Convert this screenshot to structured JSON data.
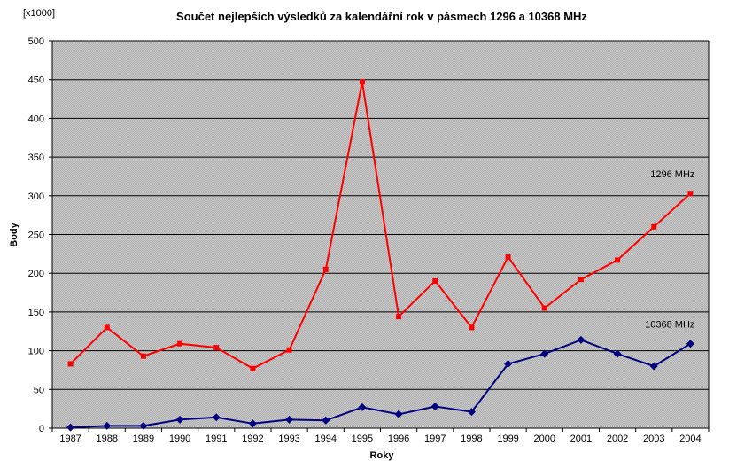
{
  "chart_data": {
    "type": "line",
    "title": "Součet nejlepších výsledků za kalendářní rok v pásmech 1296 a 10368 MHz",
    "xlabel": "Roky",
    "ylabel": "Body",
    "unit_label": "[x1000]",
    "ylim": [
      0,
      500
    ],
    "yticks": [
      0,
      50,
      100,
      150,
      200,
      250,
      300,
      350,
      400,
      450,
      500
    ],
    "grid": true,
    "legend": "none",
    "categories": [
      "1987",
      "1988",
      "1989",
      "1990",
      "1991",
      "1992",
      "1993",
      "1994",
      "1995",
      "1996",
      "1997",
      "1998",
      "1999",
      "2000",
      "2001",
      "2002",
      "2003",
      "2004"
    ],
    "series": [
      {
        "name": "1296 MHz",
        "color": "#ff0000",
        "marker": "square",
        "values": [
          83,
          130,
          93,
          109,
          104,
          77,
          101,
          205,
          447,
          144,
          190,
          130,
          221,
          155,
          192,
          217,
          260,
          303
        ]
      },
      {
        "name": "10368 MHz",
        "color": "#000080",
        "marker": "diamond",
        "values": [
          1,
          3,
          3,
          11,
          14,
          6,
          11,
          10,
          27,
          18,
          28,
          21,
          83,
          96,
          114,
          96,
          80,
          109
        ]
      }
    ]
  },
  "colors": {
    "plot_background": "#c0c0c0",
    "grid": "#000000",
    "axis": "#000000"
  }
}
